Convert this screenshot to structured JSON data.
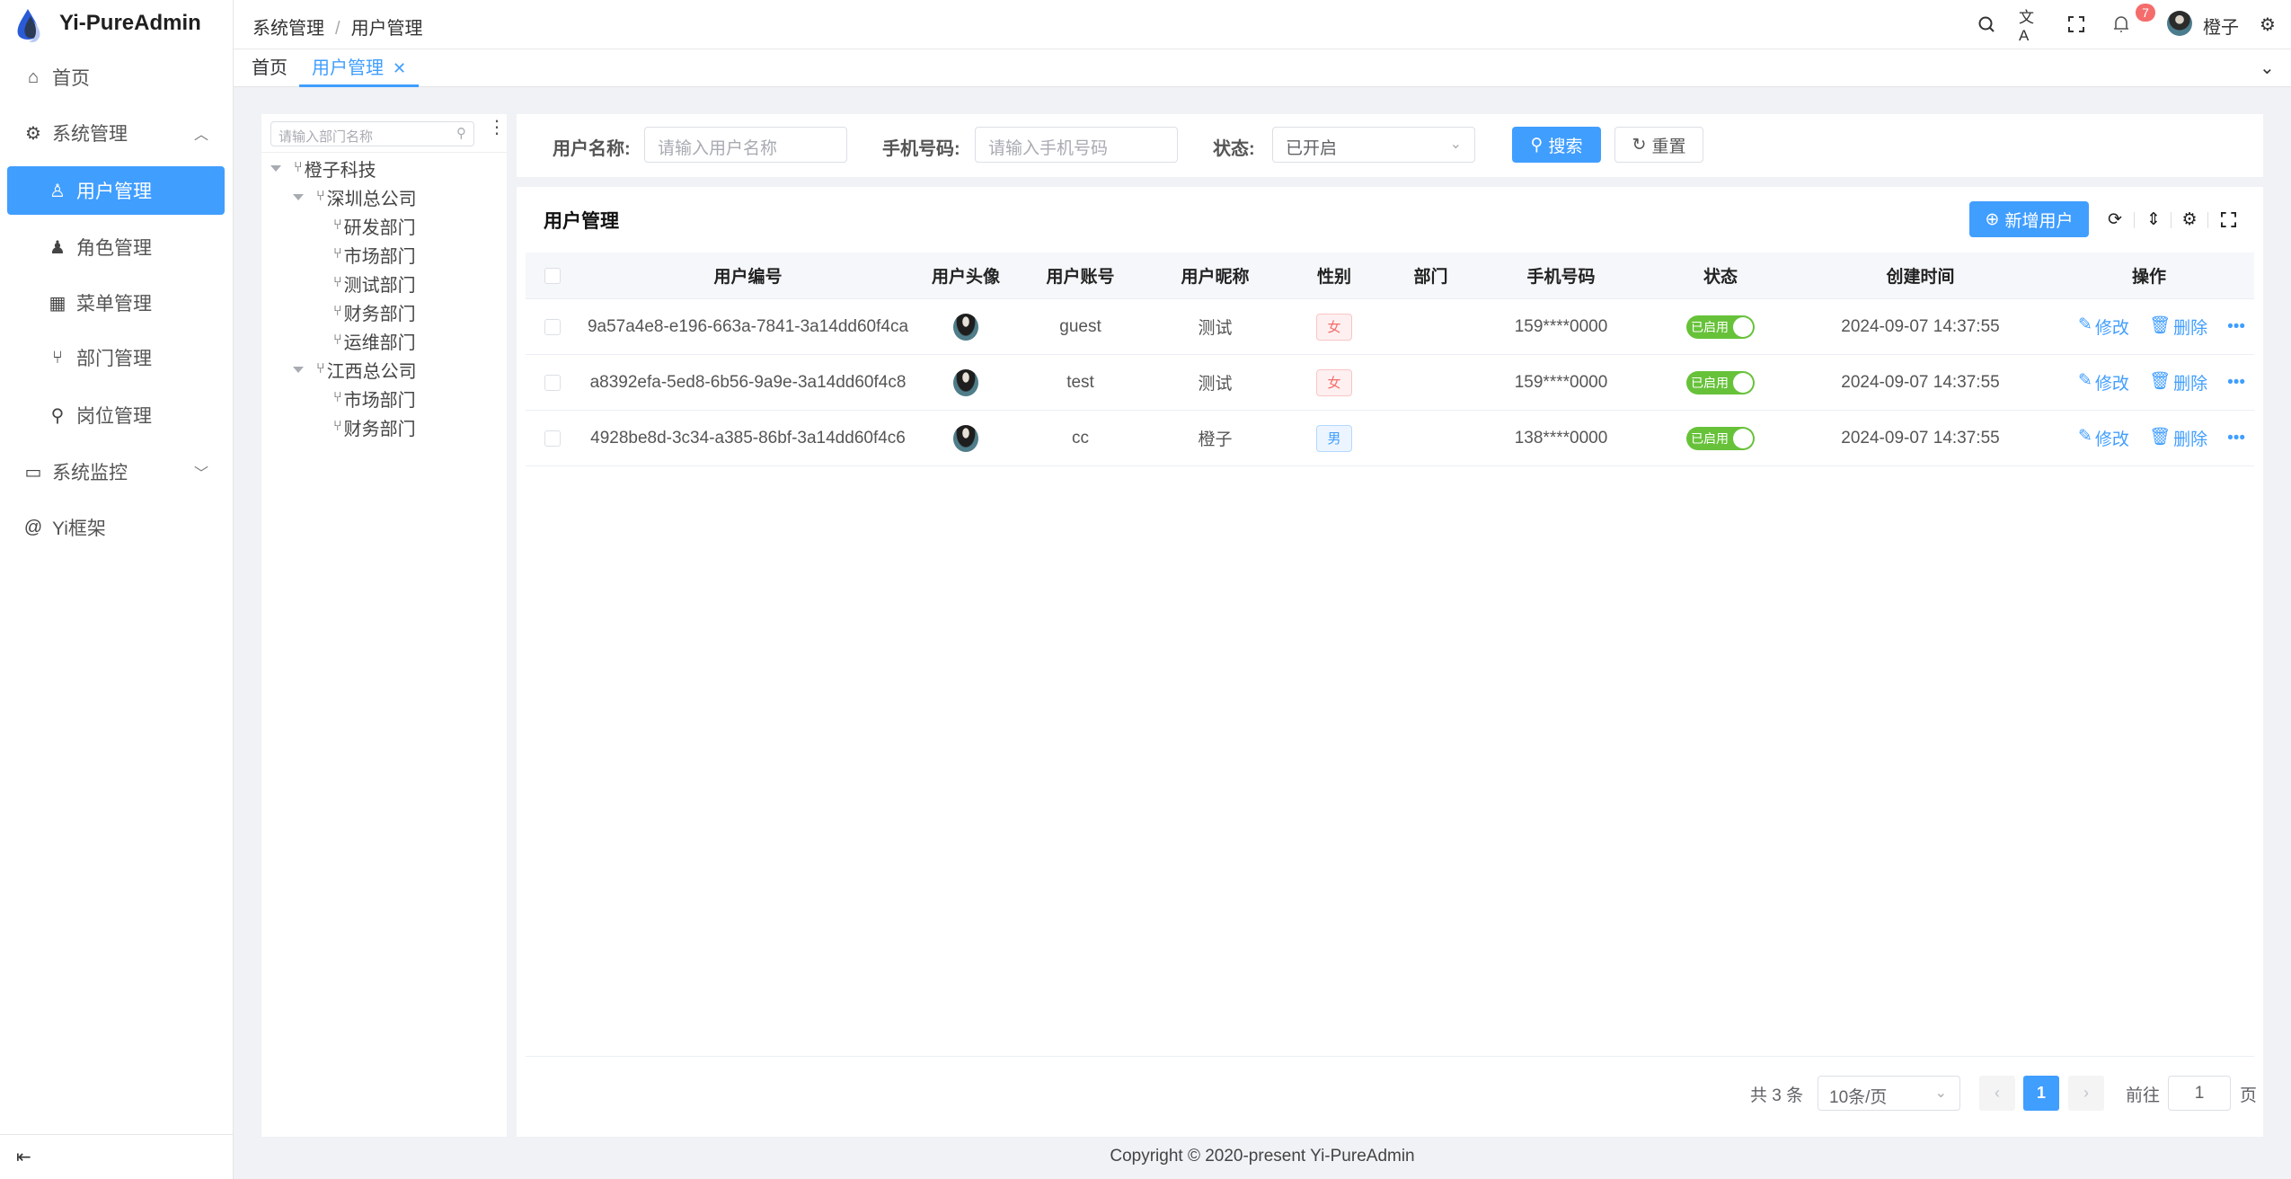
{
  "app": {
    "title": "Yi-PureAdmin",
    "footer": "Copyright © 2020-present Yi-PureAdmin"
  },
  "sidebar": {
    "items": [
      {
        "label": "首页",
        "icon": "home-icon"
      },
      {
        "label": "系统管理",
        "icon": "gear-icon",
        "expanded": true
      },
      {
        "label": "用户管理",
        "icon": "user-icon",
        "active": true
      },
      {
        "label": "角色管理",
        "icon": "role-icon"
      },
      {
        "label": "菜单管理",
        "icon": "grid-icon"
      },
      {
        "label": "部门管理",
        "icon": "branch-icon"
      },
      {
        "label": "岗位管理",
        "icon": "org-icon"
      },
      {
        "label": "系统监控",
        "icon": "monitor-icon",
        "expanded": false
      },
      {
        "label": "Yi框架",
        "icon": "at-icon"
      }
    ]
  },
  "header": {
    "breadcrumb": [
      "系统管理",
      "用户管理"
    ],
    "notification_count": "7",
    "username": "橙子"
  },
  "tabs": [
    {
      "label": "首页"
    },
    {
      "label": "用户管理",
      "active": true
    }
  ],
  "tree": {
    "placeholder": "请输入部门名称",
    "nodes": [
      {
        "label": "橙子科技",
        "level": 0
      },
      {
        "label": "深圳总公司",
        "level": 1
      },
      {
        "label": "研发部门",
        "level": 2
      },
      {
        "label": "市场部门",
        "level": 2
      },
      {
        "label": "测试部门",
        "level": 2
      },
      {
        "label": "财务部门",
        "level": 2
      },
      {
        "label": "运维部门",
        "level": 2
      },
      {
        "label": "江西总公司",
        "level": 1
      },
      {
        "label": "市场部门",
        "level": 2
      },
      {
        "label": "财务部门",
        "level": 2
      }
    ]
  },
  "search": {
    "username_label": "用户名称:",
    "username_placeholder": "请输入用户名称",
    "phone_label": "手机号码:",
    "phone_placeholder": "请输入手机号码",
    "status_label": "状态:",
    "status_value": "已开启",
    "search_btn": "搜索",
    "reset_btn": "重置"
  },
  "table": {
    "title": "用户管理",
    "add_btn": "新增用户",
    "columns": [
      "用户编号",
      "用户头像",
      "用户账号",
      "用户昵称",
      "性别",
      "部门",
      "手机号码",
      "状态",
      "创建时间",
      "操作"
    ],
    "rows": [
      {
        "id": "9a57a4e8-e196-663a-7841-3a14dd60f4ca",
        "account": "guest",
        "nickname": "测试",
        "gender": "女",
        "dept": "",
        "phone": "159****0000",
        "status": "已启用",
        "created": "2024-09-07 14:37:55"
      },
      {
        "id": "a8392efa-5ed8-6b56-9a9e-3a14dd60f4c8",
        "account": "test",
        "nickname": "测试",
        "gender": "女",
        "dept": "",
        "phone": "159****0000",
        "status": "已启用",
        "created": "2024-09-07 14:37:55"
      },
      {
        "id": "4928be8d-3c34-a385-86bf-3a14dd60f4c6",
        "account": "cc",
        "nickname": "橙子",
        "gender": "男",
        "dept": "",
        "phone": "138****0000",
        "status": "已启用",
        "created": "2024-09-07 14:37:55"
      }
    ],
    "edit_label": "修改",
    "delete_label": "删除"
  },
  "pagination": {
    "total": "共 3 条",
    "page_size": "10条/页",
    "current": "1",
    "goto_label": "前往",
    "goto_value": "1",
    "page_suffix": "页"
  },
  "colors": {
    "primary": "#409eff",
    "success": "#67c23a",
    "danger": "#f56c6c"
  }
}
